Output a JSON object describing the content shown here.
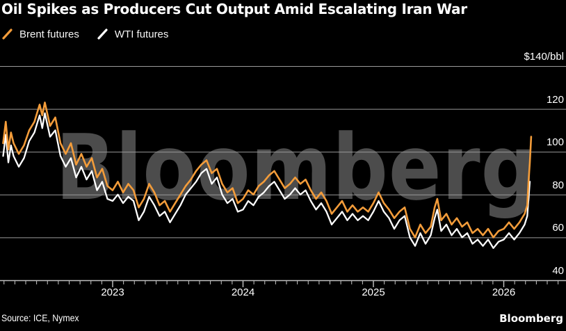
{
  "title": "Oil Spikes as Producers Cut Output Amid Escalating Iran War",
  "legend": {
    "items": [
      {
        "label": "Brent futures",
        "color": "#F39C3A"
      },
      {
        "label": "WTI futures",
        "color": "#FFFFFF"
      }
    ]
  },
  "watermark": "Bloomberg",
  "source": "Source: ICE, Nymex",
  "brand": "Bloomberg",
  "colors": {
    "background": "#000000",
    "grid": "#9a9a9a",
    "axis": "#c8c8c8",
    "text": "#ffffff",
    "watermark": "#4C4C4C",
    "brent": "#F39C3A",
    "wti": "#FFFFFF"
  },
  "chart_data": {
    "type": "line",
    "title": "Oil Spikes as Producers Cut Output Amid Escalating Iran War",
    "xlabel": "",
    "ylabel": "$/bbl",
    "x_unit": "year (decimal)",
    "xlim": [
      2022.15,
      2026.48
    ],
    "ylim": [
      40,
      140
    ],
    "grid": "horizontal",
    "legend_position": "top-left",
    "yticks": [
      140,
      120,
      100,
      80,
      60,
      40
    ],
    "ytick_labels": [
      "$140/bbl",
      "120",
      "100",
      "80",
      "60",
      "40"
    ],
    "xticks_major": [
      2023,
      2024,
      2025,
      2026
    ],
    "xtick_labels": [
      "2023",
      "2024",
      "2025",
      "2026"
    ],
    "minor_xticks": "monthly",
    "series": [
      {
        "name": "Brent futures",
        "color": "#F39C3A",
        "points": [
          [
            2022.16,
            104
          ],
          [
            2022.18,
            114
          ],
          [
            2022.2,
            101
          ],
          [
            2022.22,
            109
          ],
          [
            2022.24,
            104
          ],
          [
            2022.28,
            99
          ],
          [
            2022.32,
            103
          ],
          [
            2022.36,
            110
          ],
          [
            2022.4,
            114
          ],
          [
            2022.44,
            122
          ],
          [
            2022.46,
            117
          ],
          [
            2022.48,
            123
          ],
          [
            2022.52,
            112
          ],
          [
            2022.56,
            116
          ],
          [
            2022.6,
            104
          ],
          [
            2022.64,
            99
          ],
          [
            2022.68,
            104
          ],
          [
            2022.72,
            94
          ],
          [
            2022.76,
            99
          ],
          [
            2022.8,
            93
          ],
          [
            2022.84,
            97
          ],
          [
            2022.88,
            88
          ],
          [
            2022.92,
            92
          ],
          [
            2022.96,
            84
          ],
          [
            2023.0,
            82
          ],
          [
            2023.04,
            86
          ],
          [
            2023.08,
            81
          ],
          [
            2023.12,
            85
          ],
          [
            2023.16,
            82
          ],
          [
            2023.2,
            74
          ],
          [
            2023.24,
            78
          ],
          [
            2023.28,
            85
          ],
          [
            2023.32,
            81
          ],
          [
            2023.36,
            75
          ],
          [
            2023.4,
            77
          ],
          [
            2023.44,
            72
          ],
          [
            2023.48,
            76
          ],
          [
            2023.52,
            80
          ],
          [
            2023.56,
            84
          ],
          [
            2023.6,
            87
          ],
          [
            2023.64,
            91
          ],
          [
            2023.68,
            94
          ],
          [
            2023.72,
            96
          ],
          [
            2023.76,
            90
          ],
          [
            2023.8,
            92
          ],
          [
            2023.84,
            85
          ],
          [
            2023.88,
            81
          ],
          [
            2023.92,
            83
          ],
          [
            2023.96,
            76
          ],
          [
            2024.0,
            78
          ],
          [
            2024.04,
            82
          ],
          [
            2024.08,
            80
          ],
          [
            2024.12,
            84
          ],
          [
            2024.16,
            86
          ],
          [
            2024.2,
            89
          ],
          [
            2024.24,
            91
          ],
          [
            2024.28,
            87
          ],
          [
            2024.32,
            83
          ],
          [
            2024.36,
            85
          ],
          [
            2024.4,
            88
          ],
          [
            2024.44,
            85
          ],
          [
            2024.48,
            87
          ],
          [
            2024.52,
            82
          ],
          [
            2024.56,
            78
          ],
          [
            2024.6,
            81
          ],
          [
            2024.64,
            77
          ],
          [
            2024.68,
            71
          ],
          [
            2024.72,
            74
          ],
          [
            2024.76,
            77
          ],
          [
            2024.8,
            72
          ],
          [
            2024.84,
            75
          ],
          [
            2024.88,
            72
          ],
          [
            2024.92,
            74
          ],
          [
            2024.96,
            72
          ],
          [
            2025.0,
            76
          ],
          [
            2025.04,
            81
          ],
          [
            2025.08,
            76
          ],
          [
            2025.12,
            73
          ],
          [
            2025.16,
            69
          ],
          [
            2025.2,
            72
          ],
          [
            2025.24,
            74
          ],
          [
            2025.28,
            64
          ],
          [
            2025.32,
            60
          ],
          [
            2025.36,
            66
          ],
          [
            2025.4,
            62
          ],
          [
            2025.44,
            65
          ],
          [
            2025.47,
            74
          ],
          [
            2025.49,
            78
          ],
          [
            2025.52,
            68
          ],
          [
            2025.56,
            71
          ],
          [
            2025.6,
            66
          ],
          [
            2025.64,
            69
          ],
          [
            2025.68,
            65
          ],
          [
            2025.72,
            67
          ],
          [
            2025.76,
            62
          ],
          [
            2025.8,
            64
          ],
          [
            2025.84,
            61
          ],
          [
            2025.88,
            64
          ],
          [
            2025.92,
            60
          ],
          [
            2025.96,
            63
          ],
          [
            2026.0,
            64
          ],
          [
            2026.04,
            67
          ],
          [
            2026.08,
            64
          ],
          [
            2026.12,
            67
          ],
          [
            2026.16,
            71
          ],
          [
            2026.18,
            75
          ],
          [
            2026.19,
            86
          ],
          [
            2026.2,
            95
          ],
          [
            2026.21,
            107
          ]
        ]
      },
      {
        "name": "WTI futures",
        "color": "#FFFFFF",
        "points": [
          [
            2022.16,
            98
          ],
          [
            2022.18,
            108
          ],
          [
            2022.2,
            95
          ],
          [
            2022.22,
            103
          ],
          [
            2022.24,
            98
          ],
          [
            2022.28,
            93
          ],
          [
            2022.32,
            97
          ],
          [
            2022.36,
            105
          ],
          [
            2022.4,
            109
          ],
          [
            2022.44,
            117
          ],
          [
            2022.46,
            111
          ],
          [
            2022.48,
            118
          ],
          [
            2022.52,
            107
          ],
          [
            2022.56,
            110
          ],
          [
            2022.6,
            98
          ],
          [
            2022.64,
            93
          ],
          [
            2022.68,
            97
          ],
          [
            2022.72,
            88
          ],
          [
            2022.76,
            93
          ],
          [
            2022.8,
            87
          ],
          [
            2022.84,
            91
          ],
          [
            2022.88,
            82
          ],
          [
            2022.92,
            86
          ],
          [
            2022.96,
            78
          ],
          [
            2023.0,
            77
          ],
          [
            2023.04,
            80
          ],
          [
            2023.08,
            76
          ],
          [
            2023.12,
            79
          ],
          [
            2023.16,
            77
          ],
          [
            2023.2,
            68
          ],
          [
            2023.24,
            72
          ],
          [
            2023.28,
            79
          ],
          [
            2023.32,
            75
          ],
          [
            2023.36,
            70
          ],
          [
            2023.4,
            72
          ],
          [
            2023.44,
            67
          ],
          [
            2023.48,
            71
          ],
          [
            2023.52,
            75
          ],
          [
            2023.56,
            80
          ],
          [
            2023.6,
            83
          ],
          [
            2023.64,
            86
          ],
          [
            2023.68,
            90
          ],
          [
            2023.72,
            92
          ],
          [
            2023.76,
            85
          ],
          [
            2023.8,
            88
          ],
          [
            2023.84,
            80
          ],
          [
            2023.88,
            76
          ],
          [
            2023.92,
            78
          ],
          [
            2023.96,
            72
          ],
          [
            2024.0,
            73
          ],
          [
            2024.04,
            77
          ],
          [
            2024.08,
            75
          ],
          [
            2024.12,
            79
          ],
          [
            2024.16,
            81
          ],
          [
            2024.2,
            84
          ],
          [
            2024.24,
            86
          ],
          [
            2024.28,
            82
          ],
          [
            2024.32,
            78
          ],
          [
            2024.36,
            80
          ],
          [
            2024.4,
            83
          ],
          [
            2024.44,
            80
          ],
          [
            2024.48,
            82
          ],
          [
            2024.52,
            77
          ],
          [
            2024.56,
            73
          ],
          [
            2024.6,
            76
          ],
          [
            2024.64,
            72
          ],
          [
            2024.68,
            66
          ],
          [
            2024.72,
            69
          ],
          [
            2024.76,
            72
          ],
          [
            2024.8,
            68
          ],
          [
            2024.84,
            71
          ],
          [
            2024.88,
            68
          ],
          [
            2024.92,
            70
          ],
          [
            2024.96,
            68
          ],
          [
            2025.0,
            72
          ],
          [
            2025.04,
            77
          ],
          [
            2025.08,
            72
          ],
          [
            2025.12,
            69
          ],
          [
            2025.16,
            64
          ],
          [
            2025.2,
            68
          ],
          [
            2025.24,
            70
          ],
          [
            2025.28,
            60
          ],
          [
            2025.32,
            56
          ],
          [
            2025.36,
            62
          ],
          [
            2025.4,
            57
          ],
          [
            2025.44,
            61
          ],
          [
            2025.47,
            69
          ],
          [
            2025.49,
            73
          ],
          [
            2025.52,
            63
          ],
          [
            2025.56,
            66
          ],
          [
            2025.6,
            61
          ],
          [
            2025.64,
            64
          ],
          [
            2025.68,
            60
          ],
          [
            2025.72,
            62
          ],
          [
            2025.76,
            57
          ],
          [
            2025.8,
            59
          ],
          [
            2025.84,
            56
          ],
          [
            2025.88,
            59
          ],
          [
            2025.92,
            55
          ],
          [
            2025.96,
            58
          ],
          [
            2026.0,
            59
          ],
          [
            2026.04,
            62
          ],
          [
            2026.08,
            59
          ],
          [
            2026.12,
            62
          ],
          [
            2026.16,
            66
          ],
          [
            2026.18,
            70
          ],
          [
            2026.19,
            78
          ],
          [
            2026.2,
            86
          ]
        ]
      }
    ]
  }
}
